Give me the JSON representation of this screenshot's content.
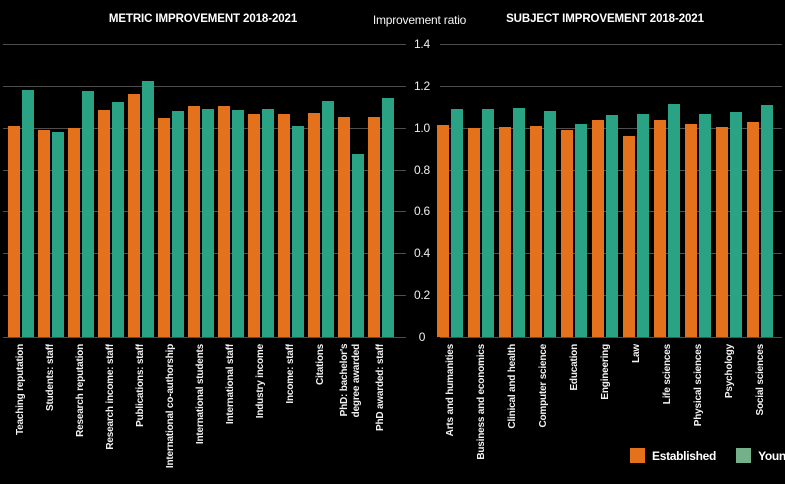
{
  "colors": {
    "background": "#000000",
    "established": "#e4711b",
    "young": "#2aa385",
    "legend_young_swatch": "#74b18a",
    "gridline": "#4e4e4e",
    "title_text": "#ffffff",
    "tick_text": "#ededed"
  },
  "axis": {
    "label": "Improvement ratio",
    "ticks": [
      "1.4",
      "1.2",
      "1.0",
      "0.8",
      "0.6",
      "0.4",
      "0.2",
      "0"
    ],
    "min": 0,
    "max": 1.4
  },
  "legend": {
    "established_label": "Established",
    "young_label": "Young"
  },
  "chart_data": [
    {
      "type": "bar",
      "title": "METRIC IMPROVEMENT 2018-2021",
      "ylabel": "Improvement ratio",
      "ylim": [
        0,
        1.4
      ],
      "grid": true,
      "legend_position": "bottom-right",
      "categories": [
        "Teaching reputation",
        "Students: staff",
        "Research reputation",
        "Research income: staff",
        "Publications: staff",
        "International co-authorship",
        "International students",
        "International staff",
        "Industry income",
        "Income: staff",
        "Citations",
        "PhD: bachelor's\ndegree awarded",
        "PhD awarded: staff"
      ],
      "series": [
        {
          "name": "Established",
          "values": [
            1.01,
            0.99,
            1.0,
            1.085,
            1.16,
            1.045,
            1.105,
            1.105,
            1.065,
            1.065,
            1.07,
            1.05,
            1.05
          ]
        },
        {
          "name": "Young",
          "values": [
            1.18,
            0.98,
            1.175,
            1.125,
            1.225,
            1.08,
            1.09,
            1.085,
            1.09,
            1.01,
            1.13,
            0.875,
            1.14
          ]
        }
      ]
    },
    {
      "type": "bar",
      "title": "SUBJECT IMPROVEMENT 2018-2021",
      "ylabel": "Improvement ratio",
      "ylim": [
        0,
        1.4
      ],
      "grid": true,
      "legend_position": "bottom-right",
      "categories": [
        "Arts and humanities",
        "Business and economics",
        "Clinical and health",
        "Computer science",
        "Education",
        "Engineering",
        "Law",
        "Life sciences",
        "Physical sciences",
        "Psychology",
        "Social sciences"
      ],
      "series": [
        {
          "name": "Established",
          "values": [
            1.015,
            1.0,
            1.005,
            1.01,
            0.99,
            1.035,
            0.96,
            1.035,
            1.02,
            1.005,
            1.025
          ]
        },
        {
          "name": "Young",
          "values": [
            1.09,
            1.09,
            1.095,
            1.08,
            1.02,
            1.06,
            1.065,
            1.115,
            1.065,
            1.075,
            1.11
          ]
        }
      ]
    }
  ]
}
